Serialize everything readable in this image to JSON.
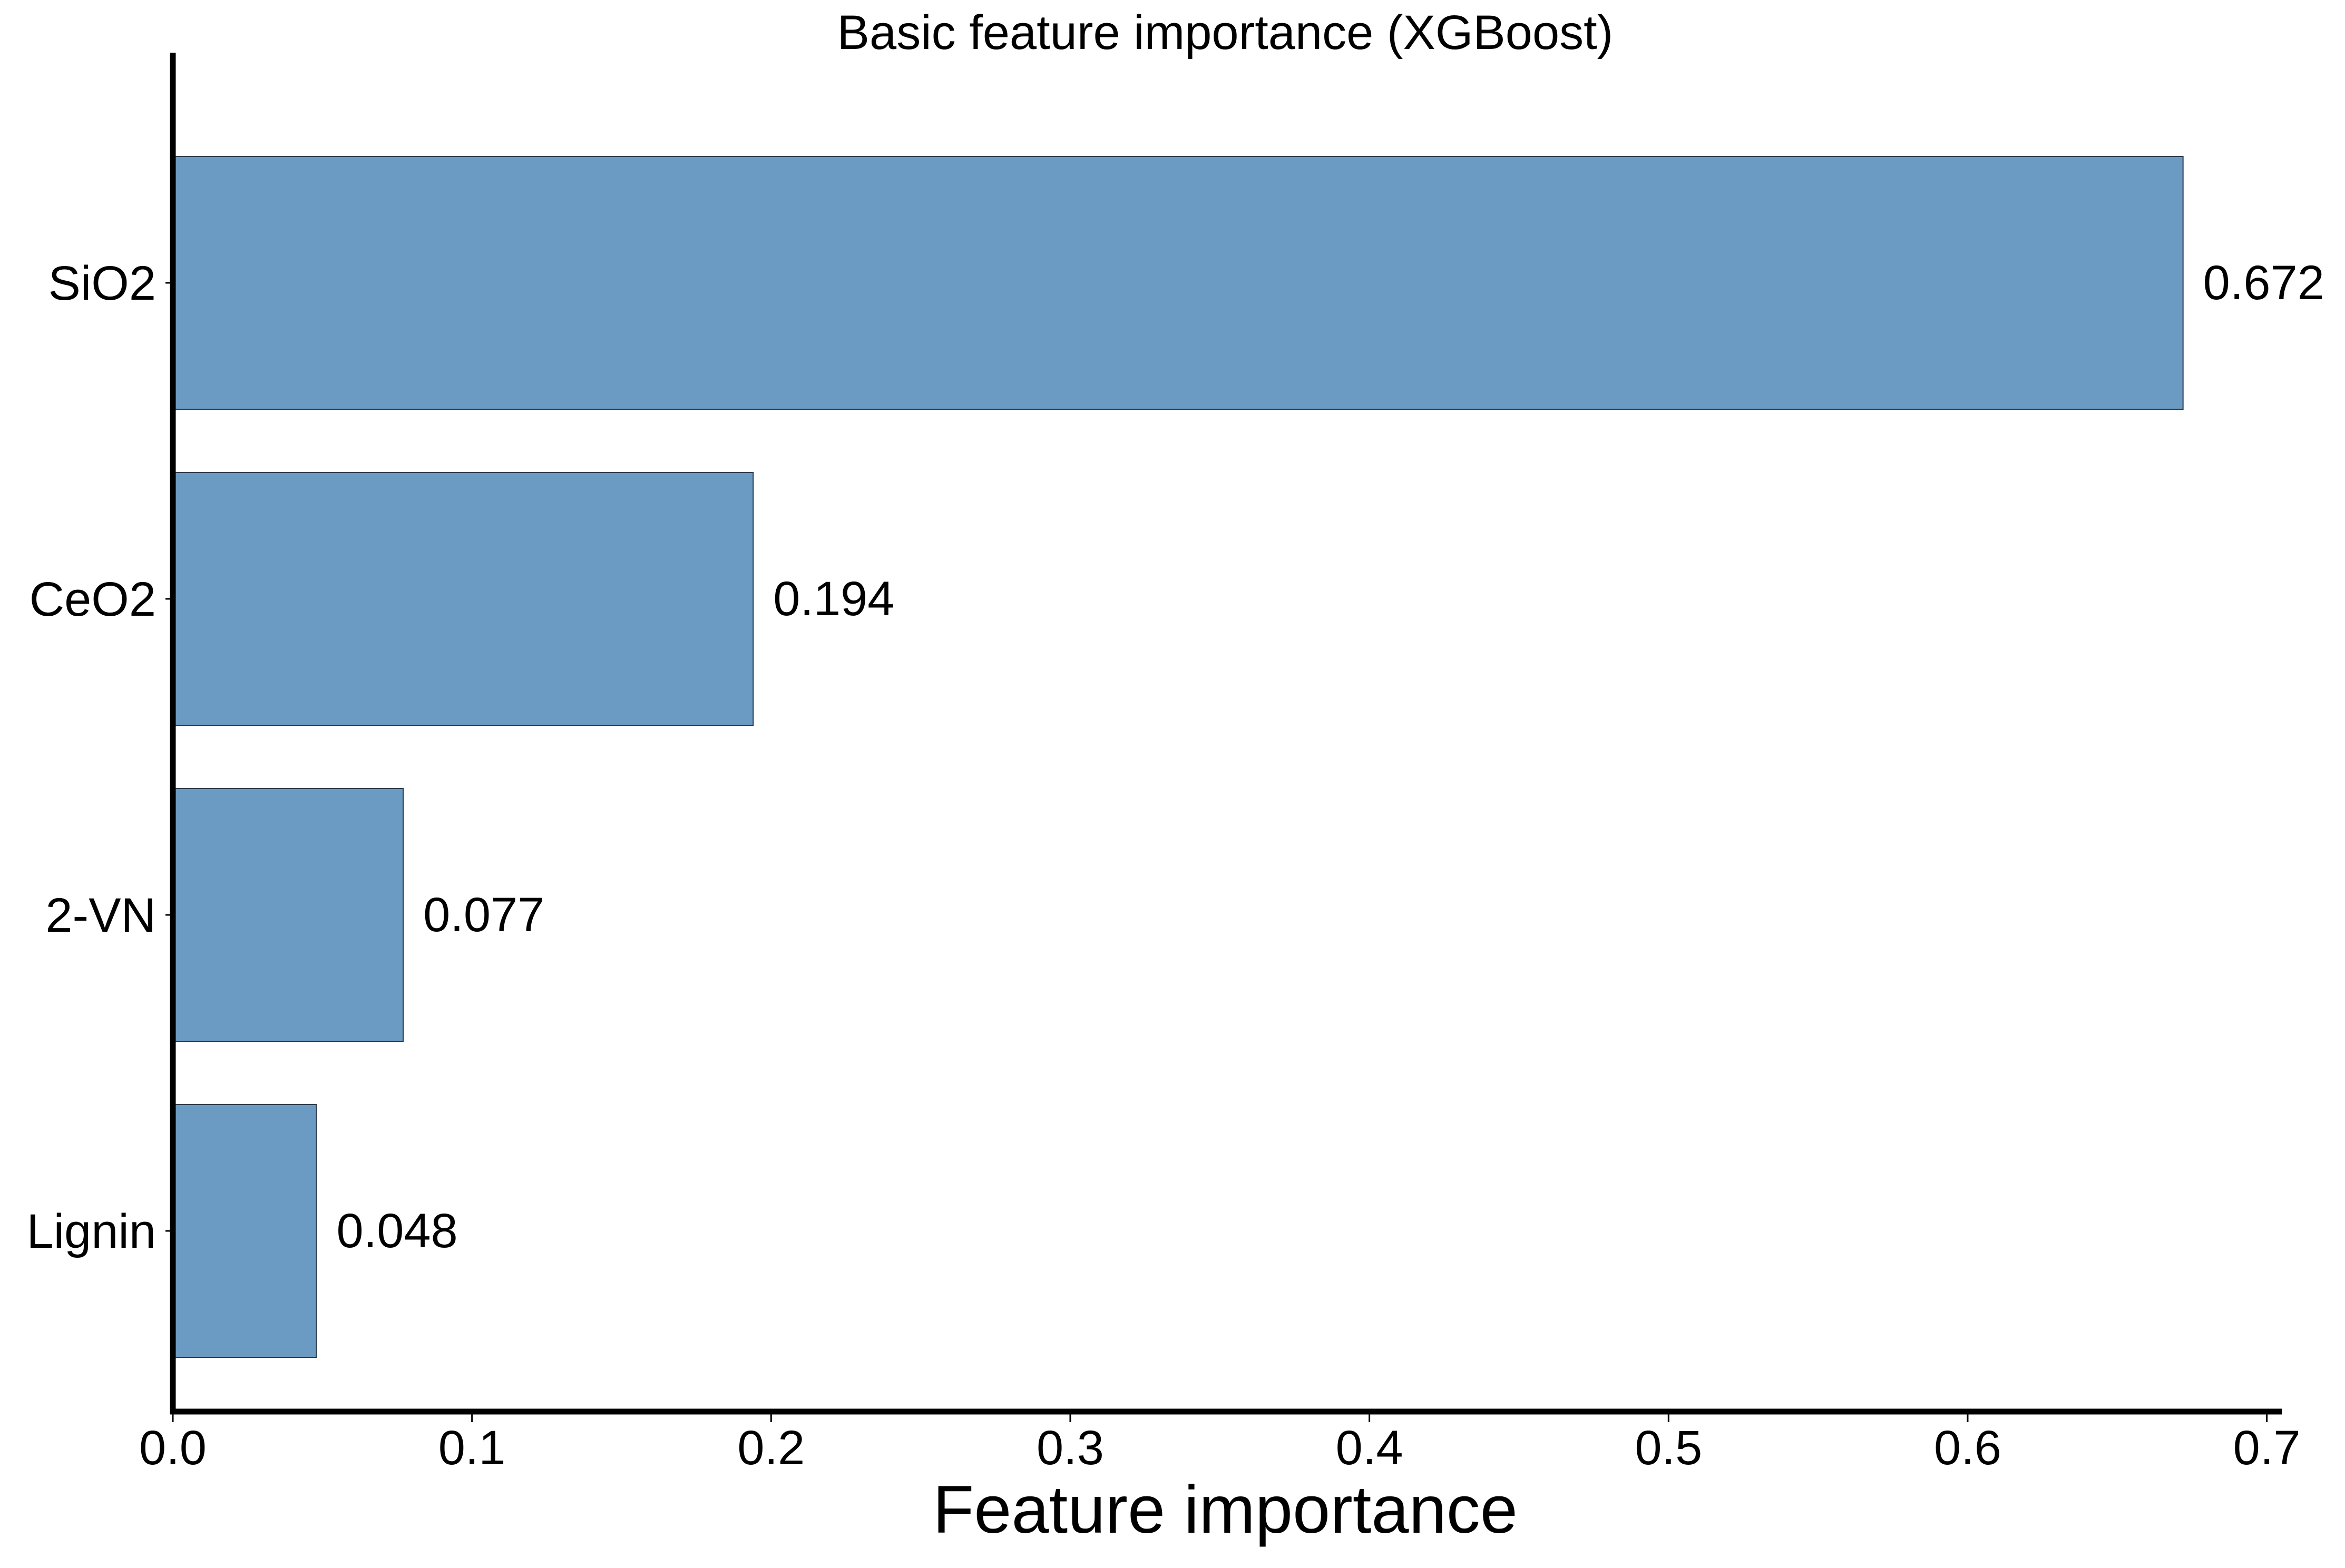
{
  "chart_data": {
    "type": "bar",
    "orientation": "horizontal",
    "title": "Basic feature importance (XGBoost)",
    "xlabel": "Feature importance",
    "ylabel": "",
    "categories": [
      "SiO2",
      "CeO2",
      "2-VN",
      "Lignin"
    ],
    "values": [
      0.672,
      0.194,
      0.077,
      0.048
    ],
    "value_labels": [
      "0.672",
      "0.194",
      "0.077",
      "0.048"
    ],
    "xlim": [
      0,
      0.705
    ],
    "xticks": [
      0.0,
      0.1,
      0.2,
      0.3,
      0.4,
      0.5,
      0.6,
      0.7
    ],
    "xtick_labels": [
      "0.0",
      "0.1",
      "0.2",
      "0.3",
      "0.4",
      "0.5",
      "0.6",
      "0.7"
    ],
    "grid": false,
    "legend": "none",
    "colors": {
      "bar_fill": "#6b9bc3",
      "bar_edge": "#2b3a4a",
      "axis": "#000000"
    }
  }
}
